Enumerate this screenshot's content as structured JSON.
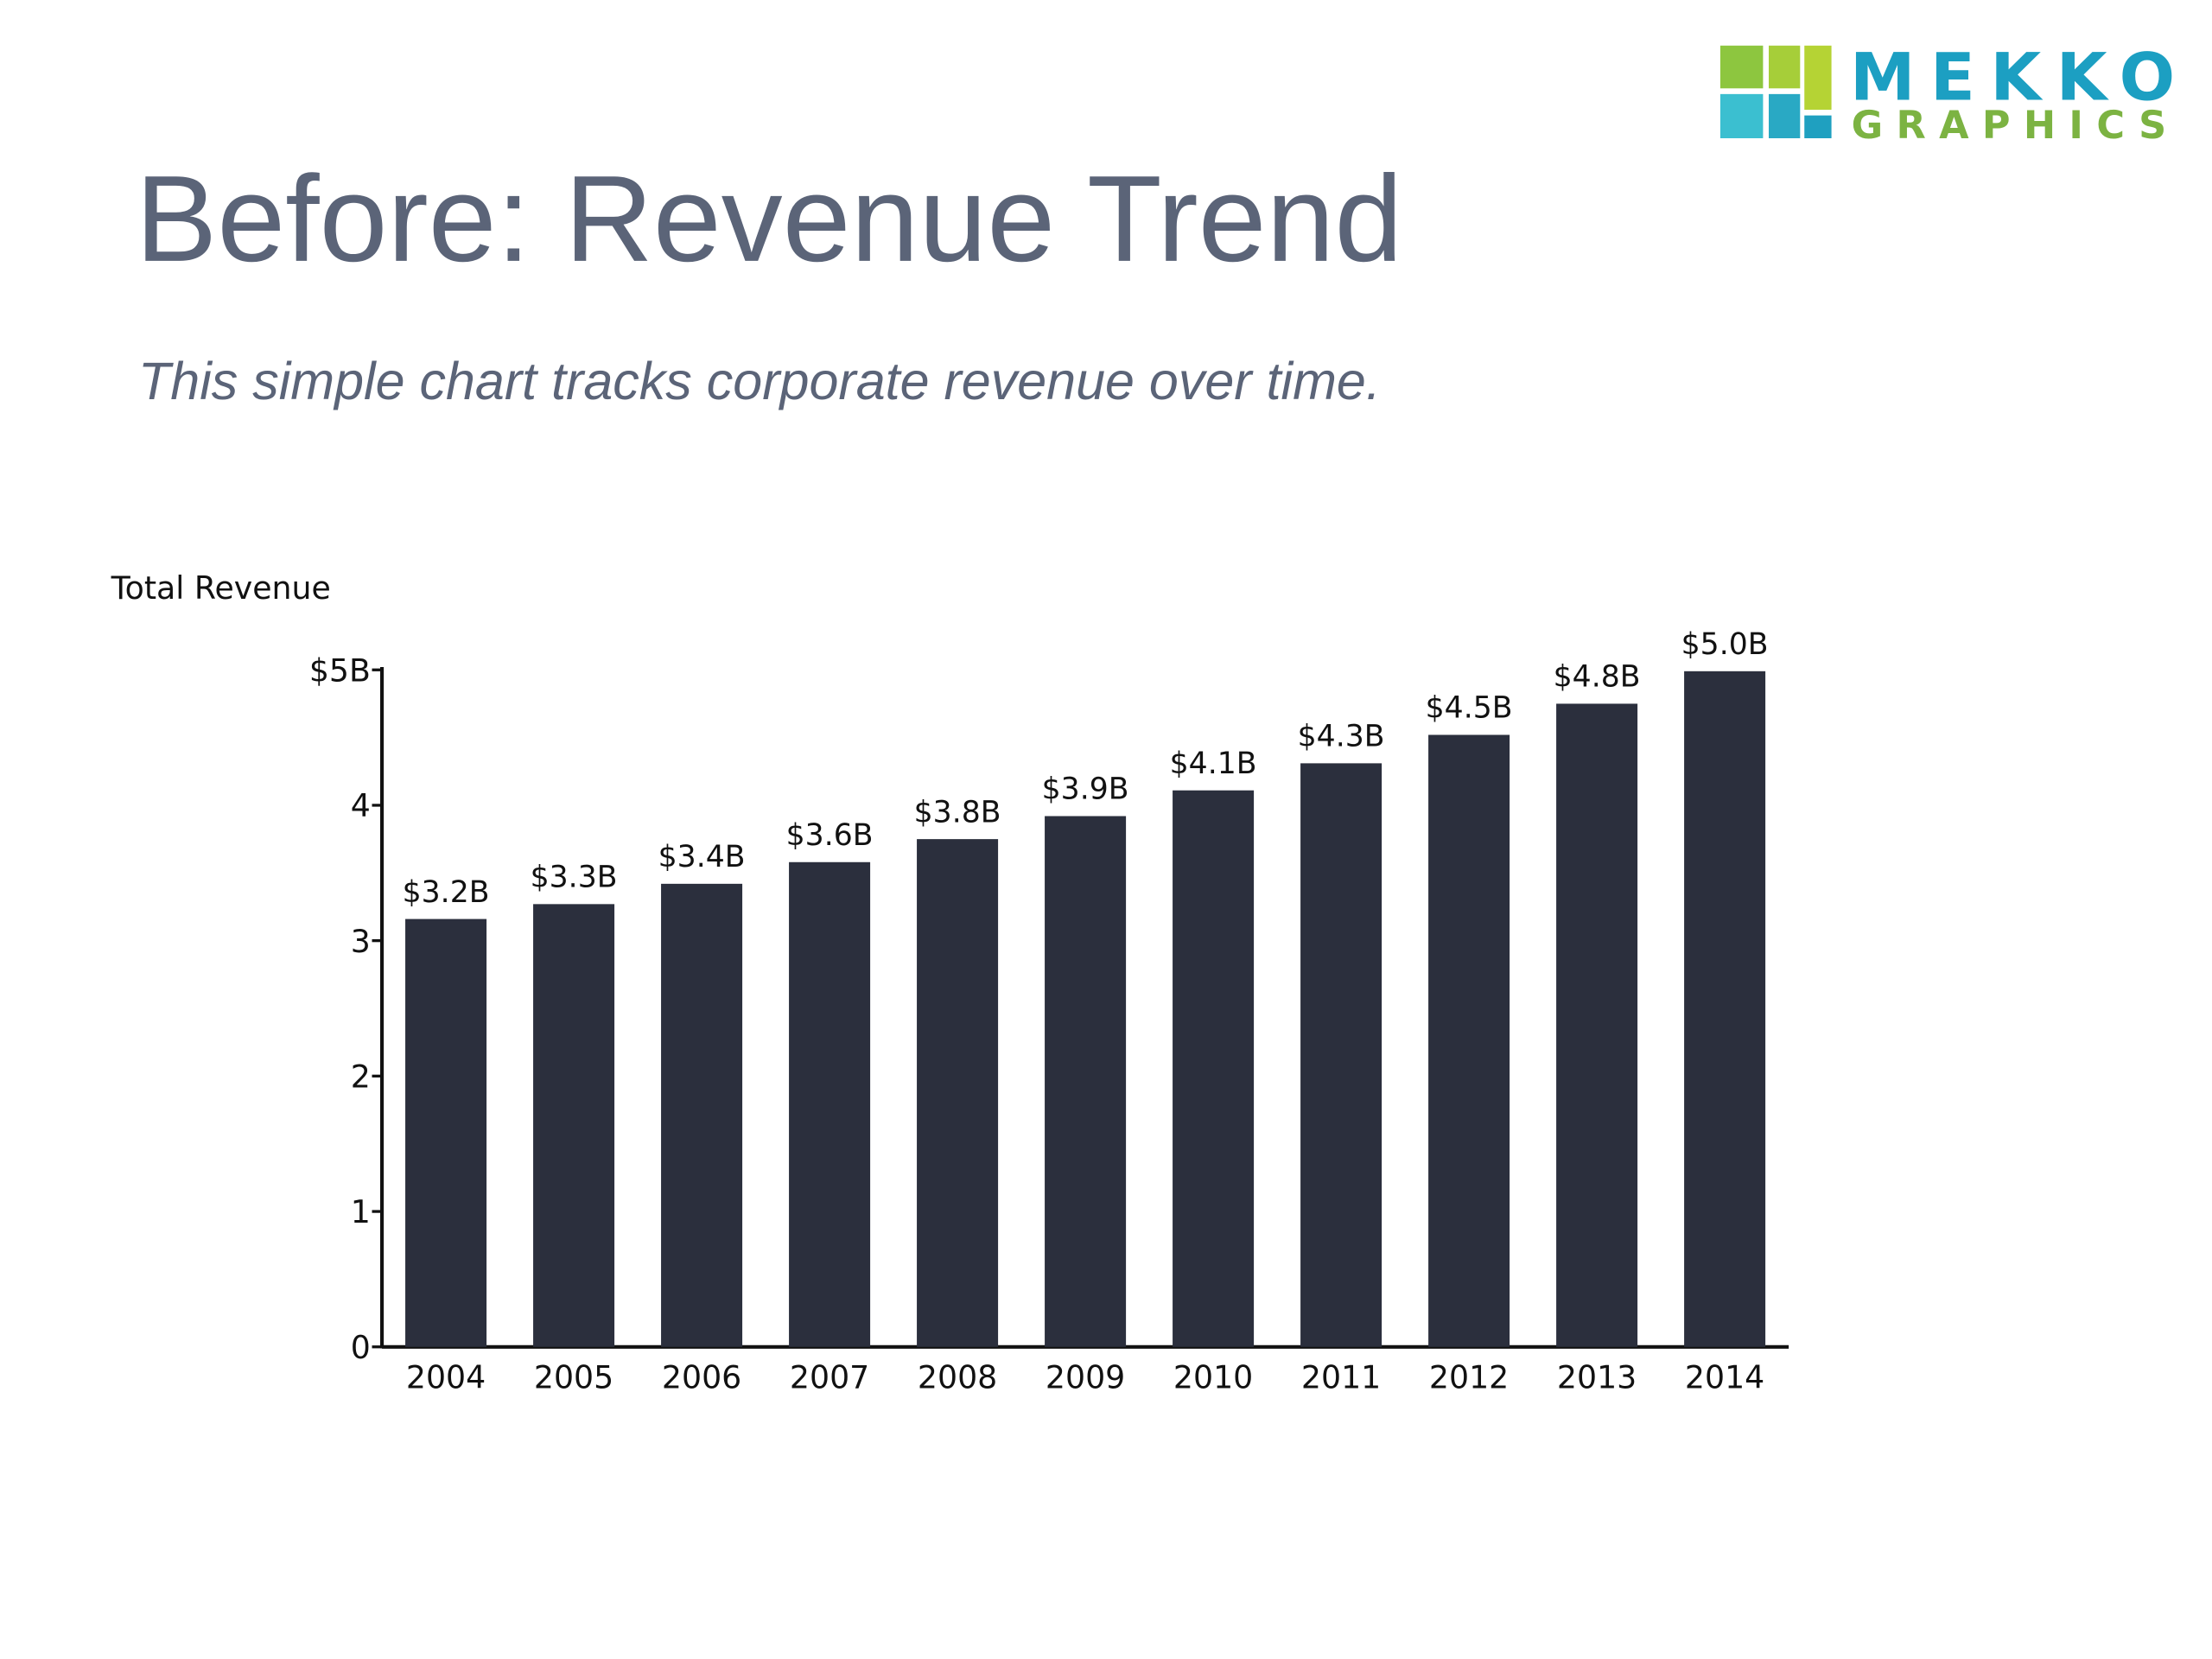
{
  "title": "Before: Revenue Trend",
  "subtitle": "This simple chart tracks corporate revenue over time.",
  "logo": {
    "line1": "MEKKO",
    "line2": "GRAPHICS"
  },
  "chart_data": {
    "type": "bar",
    "y_label": "Total Revenue",
    "categories": [
      "2004",
      "2005",
      "2006",
      "2007",
      "2008",
      "2009",
      "2010",
      "2011",
      "2012",
      "2013",
      "2014"
    ],
    "values": [
      3.16,
      3.27,
      3.42,
      3.58,
      3.75,
      3.92,
      4.11,
      4.31,
      4.52,
      4.75,
      4.99
    ],
    "value_labels": [
      "$3.2B",
      "$3.3B",
      "$3.4B",
      "$3.6B",
      "$3.8B",
      "$3.9B",
      "$4.1B",
      "$4.3B",
      "$4.5B",
      "$4.8B",
      "$5.0B"
    ],
    "color": "#2b2f3d",
    "ylim": [
      0,
      5
    ],
    "yticks": [
      0,
      1,
      2,
      3,
      4,
      {
        "value": 5,
        "label": "$5B"
      }
    ],
    "grid": false
  }
}
